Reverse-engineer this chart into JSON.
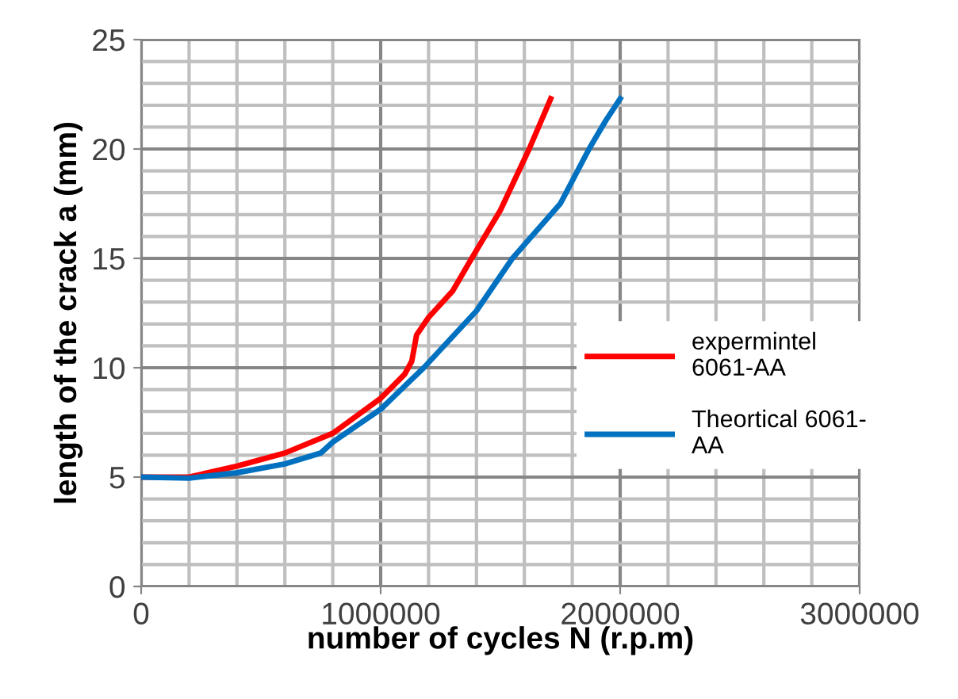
{
  "chart_data": {
    "type": "line",
    "xlabel": "number of cycles N (r.p.m)",
    "ylabel": "length of the crack a (mm)",
    "xlim": [
      0,
      3000000
    ],
    "xticks": [
      0,
      1000000,
      2000000,
      3000000
    ],
    "ylim": [
      0,
      25
    ],
    "yticks": [
      0,
      5,
      10,
      15,
      20,
      25
    ],
    "grid": true,
    "legend": "right",
    "marker": "none",
    "line_style": "solid",
    "series": [
      {
        "name": "expermintel 6061-AA",
        "color": "#ff0000",
        "x": [
          0,
          200000,
          400000,
          600000,
          800000,
          1000000,
          1100000,
          1130000,
          1150000,
          1200000,
          1300000,
          1380000,
          1500000,
          1620000,
          1710000
        ],
        "values": [
          5,
          5,
          5.5,
          6.1,
          7,
          8.6,
          9.7,
          10.3,
          11.5,
          12.3,
          13.5,
          15,
          17.2,
          20,
          22.3
        ]
      },
      {
        "name": "Theortical 6061-AA",
        "color": "#0070c0",
        "x": [
          0,
          200000,
          400000,
          600000,
          750000,
          800000,
          1000000,
          1180000,
          1400000,
          1550000,
          1750000,
          1870000,
          1940000,
          2000000
        ],
        "values": [
          5,
          4.95,
          5.2,
          5.6,
          6.1,
          6.6,
          8.1,
          10,
          12.6,
          15,
          17.5,
          20,
          21.3,
          22.3
        ]
      }
    ]
  }
}
